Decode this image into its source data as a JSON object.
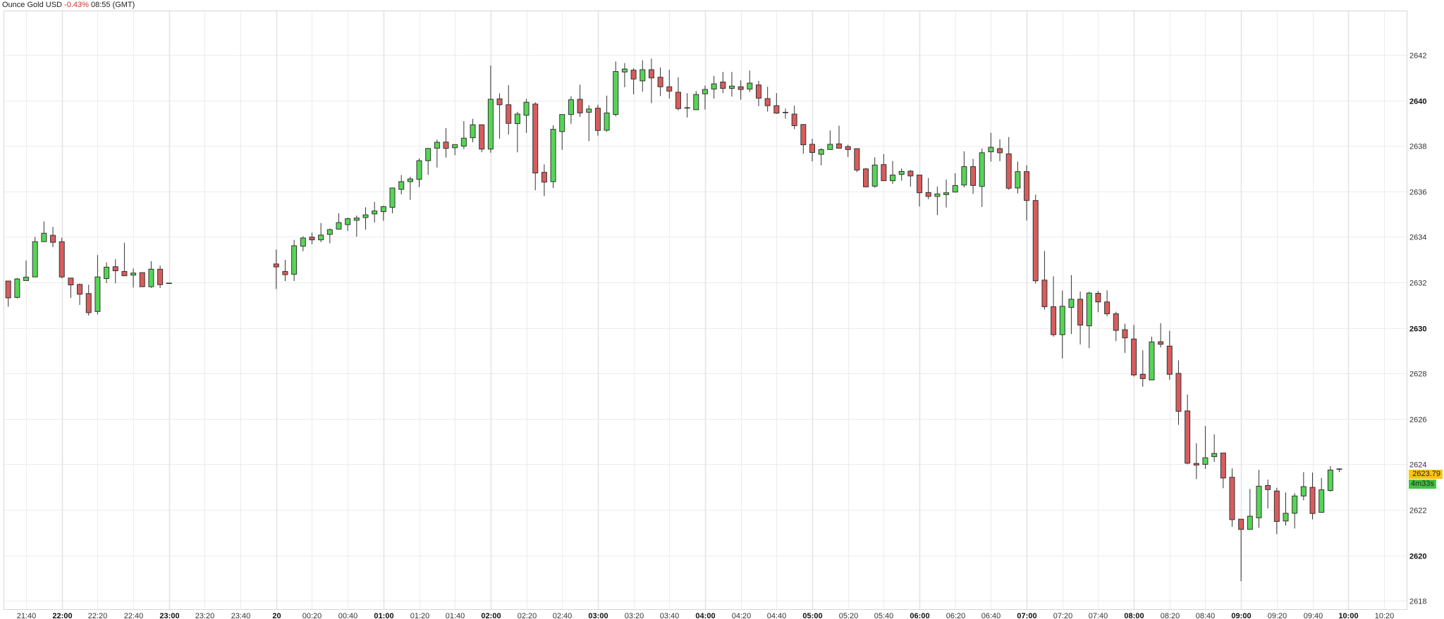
{
  "header": {
    "instrument": "Ounce Gold USD",
    "change": "-0.43%",
    "time": "08:55 (GMT)"
  },
  "colors": {
    "up": "#55d655",
    "down": "#d95c5c",
    "border": "#333333",
    "change_negative": "#d0312d",
    "price_badge": "#f5c518",
    "timer_badge": "#43c443"
  },
  "price_badge": {
    "value": "2623.79"
  },
  "timer_badge": {
    "value": "4m33s"
  },
  "chart_data": {
    "type": "candlestick",
    "interval": "5m",
    "ylim": [
      2617.6,
      2644
    ],
    "grid": true,
    "y_ticks": [
      {
        "v": 2618,
        "label": "2618",
        "bold": false
      },
      {
        "v": 2620,
        "label": "2620",
        "bold": true
      },
      {
        "v": 2622,
        "label": "2622",
        "bold": false
      },
      {
        "v": 2624,
        "label": "2624",
        "bold": false
      },
      {
        "v": 2626,
        "label": "2626",
        "bold": false
      },
      {
        "v": 2628,
        "label": "2628",
        "bold": false
      },
      {
        "v": 2630,
        "label": "2630",
        "bold": true
      },
      {
        "v": 2632,
        "label": "2632",
        "bold": false
      },
      {
        "v": 2634,
        "label": "2634",
        "bold": false
      },
      {
        "v": 2636,
        "label": "2636",
        "bold": false
      },
      {
        "v": 2638,
        "label": "2638",
        "bold": false
      },
      {
        "v": 2640,
        "label": "2640",
        "bold": true
      },
      {
        "v": 2642,
        "label": "2642",
        "bold": false
      }
    ],
    "x_ticks": [
      {
        "t": "21:40",
        "label": "21:40",
        "bold": false
      },
      {
        "t": "22:00",
        "label": "22:00",
        "bold": true
      },
      {
        "t": "22:20",
        "label": "22:20",
        "bold": false
      },
      {
        "t": "22:40",
        "label": "22:40",
        "bold": false
      },
      {
        "t": "23:00",
        "label": "23:00",
        "bold": true
      },
      {
        "t": "23:20",
        "label": "23:20",
        "bold": false
      },
      {
        "t": "23:40",
        "label": "23:40",
        "bold": false
      },
      {
        "t": "00:00",
        "label": "20",
        "bold": true
      },
      {
        "t": "00:20",
        "label": "00:20",
        "bold": false
      },
      {
        "t": "00:40",
        "label": "00:40",
        "bold": false
      },
      {
        "t": "01:00",
        "label": "01:00",
        "bold": true
      },
      {
        "t": "01:20",
        "label": "01:20",
        "bold": false
      },
      {
        "t": "01:40",
        "label": "01:40",
        "bold": false
      },
      {
        "t": "02:00",
        "label": "02:00",
        "bold": true
      },
      {
        "t": "02:20",
        "label": "02:20",
        "bold": false
      },
      {
        "t": "02:40",
        "label": "02:40",
        "bold": false
      },
      {
        "t": "03:00",
        "label": "03:00",
        "bold": true
      },
      {
        "t": "03:20",
        "label": "03:20",
        "bold": false
      },
      {
        "t": "03:40",
        "label": "03:40",
        "bold": false
      },
      {
        "t": "04:00",
        "label": "04:00",
        "bold": true
      },
      {
        "t": "04:20",
        "label": "04:20",
        "bold": false
      },
      {
        "t": "04:40",
        "label": "04:40",
        "bold": false
      },
      {
        "t": "05:00",
        "label": "05:00",
        "bold": true
      },
      {
        "t": "05:20",
        "label": "05:20",
        "bold": false
      },
      {
        "t": "05:40",
        "label": "05:40",
        "bold": false
      },
      {
        "t": "06:00",
        "label": "06:00",
        "bold": true
      },
      {
        "t": "06:20",
        "label": "06:20",
        "bold": false
      },
      {
        "t": "06:40",
        "label": "06:40",
        "bold": false
      },
      {
        "t": "07:00",
        "label": "07:00",
        "bold": true
      },
      {
        "t": "07:20",
        "label": "07:20",
        "bold": false
      },
      {
        "t": "07:40",
        "label": "07:40",
        "bold": false
      },
      {
        "t": "08:00",
        "label": "08:00",
        "bold": true
      },
      {
        "t": "08:20",
        "label": "08:20",
        "bold": false
      },
      {
        "t": "08:40",
        "label": "08:40",
        "bold": false
      },
      {
        "t": "09:00",
        "label": "09:00",
        "bold": true
      },
      {
        "t": "09:20",
        "label": "09:20",
        "bold": false
      },
      {
        "t": "09:40",
        "label": "09:40",
        "bold": false
      },
      {
        "t": "10:00",
        "label": "10:00",
        "bold": true
      },
      {
        "t": "10:20",
        "label": "10:20",
        "bold": false
      }
    ],
    "candles_fields": [
      "time",
      "open",
      "high",
      "low",
      "close"
    ],
    "candles": [
      [
        "21:30",
        2632.06,
        2632.06,
        2630.93,
        2631.32
      ],
      [
        "21:35",
        2631.34,
        2632.2,
        2631.29,
        2632.15
      ],
      [
        "21:40",
        2632.08,
        2632.96,
        2632.08,
        2632.23
      ],
      [
        "21:45",
        2632.24,
        2634.0,
        2632.24,
        2633.79
      ],
      [
        "21:50",
        2633.79,
        2634.68,
        2633.79,
        2634.16
      ],
      [
        "21:55",
        2634.07,
        2634.44,
        2633.55,
        2633.76
      ],
      [
        "22:00",
        2633.79,
        2633.97,
        2632.18,
        2632.24
      ],
      [
        "22:05",
        2632.19,
        2632.19,
        2631.32,
        2631.89
      ],
      [
        "22:10",
        2631.91,
        2631.95,
        2631.01,
        2631.48
      ],
      [
        "22:15",
        2631.51,
        2631.9,
        2630.54,
        2630.67
      ],
      [
        "22:20",
        2630.72,
        2633.2,
        2630.59,
        2632.24
      ],
      [
        "22:25",
        2632.17,
        2632.88,
        2631.97,
        2632.67
      ],
      [
        "22:30",
        2632.69,
        2633.02,
        2631.96,
        2632.51
      ],
      [
        "22:35",
        2632.48,
        2633.74,
        2632.29,
        2632.29
      ],
      [
        "22:40",
        2632.32,
        2632.61,
        2631.78,
        2632.41
      ],
      [
        "22:45",
        2632.43,
        2632.43,
        2631.81,
        2631.81
      ],
      [
        "22:50",
        2631.81,
        2632.93,
        2631.76,
        2632.58
      ],
      [
        "22:55",
        2632.58,
        2632.74,
        2631.75,
        2631.9
      ],
      [
        "23:00",
        2631.96,
        2631.97,
        2631.95,
        2631.96
      ],
      [
        "00:00",
        2632.81,
        2633.44,
        2631.71,
        2632.68
      ],
      [
        "00:05",
        2632.48,
        2632.99,
        2632.06,
        2632.34
      ],
      [
        "00:10",
        2632.36,
        2633.87,
        2632.06,
        2633.61
      ],
      [
        "00:15",
        2633.59,
        2634.03,
        2633.37,
        2633.95
      ],
      [
        "00:20",
        2633.99,
        2634.19,
        2633.68,
        2633.87
      ],
      [
        "00:25",
        2633.87,
        2634.61,
        2633.77,
        2634.08
      ],
      [
        "00:30",
        2634.11,
        2634.37,
        2633.72,
        2634.32
      ],
      [
        "00:35",
        2634.34,
        2635.04,
        2634.32,
        2634.63
      ],
      [
        "00:40",
        2634.54,
        2634.85,
        2634.26,
        2634.8
      ],
      [
        "00:45",
        2634.73,
        2634.94,
        2634.01,
        2634.83
      ],
      [
        "00:50",
        2634.85,
        2635.3,
        2634.32,
        2634.97
      ],
      [
        "00:55",
        2635.01,
        2635.54,
        2634.63,
        2635.14
      ],
      [
        "01:00",
        2635.11,
        2635.37,
        2634.71,
        2635.33
      ],
      [
        "01:05",
        2635.3,
        2636.15,
        2635.04,
        2636.15
      ],
      [
        "01:10",
        2636.09,
        2636.72,
        2635.87,
        2636.43
      ],
      [
        "01:15",
        2636.43,
        2636.64,
        2635.63,
        2636.55
      ],
      [
        "01:20",
        2636.53,
        2637.45,
        2636.19,
        2637.35
      ],
      [
        "01:25",
        2637.35,
        2637.89,
        2636.73,
        2637.89
      ],
      [
        "01:30",
        2637.9,
        2638.28,
        2637.05,
        2638.16
      ],
      [
        "01:35",
        2638.17,
        2638.78,
        2637.49,
        2637.89
      ],
      [
        "01:40",
        2637.92,
        2638.06,
        2637.59,
        2638.06
      ],
      [
        "01:45",
        2637.99,
        2639.09,
        2637.86,
        2638.34
      ],
      [
        "01:50",
        2638.36,
        2639.19,
        2638.16,
        2638.93
      ],
      [
        "01:55",
        2638.93,
        2638.93,
        2637.72,
        2637.86
      ],
      [
        "02:00",
        2637.86,
        2641.53,
        2637.7,
        2640.05
      ],
      [
        "02:05",
        2640.07,
        2640.31,
        2638.32,
        2639.81
      ],
      [
        "02:10",
        2639.81,
        2640.67,
        2638.5,
        2638.99
      ],
      [
        "02:15",
        2638.98,
        2639.5,
        2637.72,
        2639.4
      ],
      [
        "02:20",
        2639.35,
        2640.07,
        2638.57,
        2639.92
      ],
      [
        "02:25",
        2639.84,
        2639.92,
        2636.05,
        2636.81
      ],
      [
        "02:30",
        2636.84,
        2637.19,
        2635.79,
        2636.41
      ],
      [
        "02:35",
        2636.43,
        2638.91,
        2636.15,
        2638.73
      ],
      [
        "02:40",
        2638.63,
        2639.38,
        2637.83,
        2639.38
      ],
      [
        "02:45",
        2639.38,
        2640.19,
        2638.97,
        2640.03
      ],
      [
        "02:50",
        2640.05,
        2640.69,
        2639.28,
        2639.45
      ],
      [
        "02:55",
        2639.48,
        2639.79,
        2638.21,
        2639.62
      ],
      [
        "03:00",
        2639.66,
        2639.81,
        2638.45,
        2638.68
      ],
      [
        "03:05",
        2638.69,
        2640.21,
        2638.62,
        2639.45
      ],
      [
        "03:10",
        2639.38,
        2641.71,
        2639.3,
        2641.27
      ],
      [
        "03:15",
        2641.25,
        2641.64,
        2640.58,
        2641.38
      ],
      [
        "03:20",
        2641.33,
        2641.41,
        2640.27,
        2640.94
      ],
      [
        "03:25",
        2640.86,
        2641.76,
        2640.39,
        2641.35
      ],
      [
        "03:30",
        2641.35,
        2641.84,
        2639.88,
        2640.99
      ],
      [
        "03:35",
        2641.02,
        2641.45,
        2640.19,
        2640.6
      ],
      [
        "03:40",
        2640.6,
        2641.35,
        2640.08,
        2640.41
      ],
      [
        "03:45",
        2640.36,
        2641.02,
        2639.56,
        2639.64
      ],
      [
        "03:50",
        2639.66,
        2640.32,
        2639.25,
        2639.67
      ],
      [
        "03:55",
        2639.59,
        2640.41,
        2639.59,
        2640.26
      ],
      [
        "04:00",
        2640.29,
        2640.65,
        2639.6,
        2640.48
      ],
      [
        "04:05",
        2640.5,
        2641.07,
        2640.08,
        2640.73
      ],
      [
        "04:10",
        2640.81,
        2641.25,
        2640.32,
        2640.53
      ],
      [
        "04:15",
        2640.53,
        2641.25,
        2640.17,
        2640.63
      ],
      [
        "04:20",
        2640.6,
        2640.88,
        2640.03,
        2640.48
      ],
      [
        "04:25",
        2640.5,
        2641.31,
        2640.37,
        2640.76
      ],
      [
        "04:30",
        2640.68,
        2640.86,
        2639.75,
        2640.1
      ],
      [
        "04:35",
        2640.08,
        2640.6,
        2639.51,
        2639.77
      ],
      [
        "04:40",
        2639.77,
        2640.32,
        2639.41,
        2639.44
      ],
      [
        "04:45",
        2639.46,
        2639.64,
        2639.2,
        2639.47
      ],
      [
        "04:50",
        2639.4,
        2639.77,
        2638.74,
        2638.89
      ],
      [
        "04:55",
        2638.94,
        2638.96,
        2637.66,
        2638.05
      ],
      [
        "05:00",
        2638.07,
        2638.31,
        2637.32,
        2637.71
      ],
      [
        "05:05",
        2637.63,
        2637.9,
        2637.15,
        2637.84
      ],
      [
        "05:10",
        2637.84,
        2638.68,
        2637.84,
        2638.07
      ],
      [
        "05:15",
        2638.09,
        2638.89,
        2637.9,
        2637.9
      ],
      [
        "05:20",
        2637.97,
        2638.05,
        2637.51,
        2637.84
      ],
      [
        "05:25",
        2637.88,
        2637.88,
        2636.85,
        2636.94
      ],
      [
        "05:30",
        2636.99,
        2637.03,
        2636.18,
        2636.2
      ],
      [
        "05:35",
        2636.23,
        2637.5,
        2636.16,
        2637.16
      ],
      [
        "05:40",
        2637.18,
        2637.64,
        2636.47,
        2636.47
      ],
      [
        "05:45",
        2636.47,
        2637.34,
        2636.33,
        2636.72
      ],
      [
        "05:50",
        2636.75,
        2637.01,
        2636.47,
        2636.88
      ],
      [
        "05:55",
        2636.89,
        2636.94,
        2636.21,
        2636.68
      ],
      [
        "06:00",
        2636.72,
        2636.72,
        2635.34,
        2635.94
      ],
      [
        "06:05",
        2635.95,
        2636.59,
        2635.66,
        2635.78
      ],
      [
        "06:10",
        2635.78,
        2636.21,
        2634.96,
        2635.89
      ],
      [
        "06:15",
        2635.86,
        2636.52,
        2635.29,
        2635.94
      ],
      [
        "06:20",
        2635.97,
        2636.8,
        2635.97,
        2636.26
      ],
      [
        "06:25",
        2636.28,
        2637.76,
        2636.18,
        2637.09
      ],
      [
        "06:30",
        2637.09,
        2637.43,
        2635.89,
        2636.26
      ],
      [
        "06:35",
        2636.22,
        2637.88,
        2635.32,
        2637.7
      ],
      [
        "06:40",
        2637.74,
        2638.58,
        2637.31,
        2637.94
      ],
      [
        "06:45",
        2637.88,
        2638.29,
        2637.33,
        2637.7
      ],
      [
        "06:50",
        2637.65,
        2638.39,
        2636.07,
        2636.14
      ],
      [
        "06:55",
        2636.15,
        2637.31,
        2635.91,
        2636.87
      ],
      [
        "07:00",
        2636.87,
        2637.15,
        2634.72,
        2635.6
      ],
      [
        "07:05",
        2635.6,
        2635.86,
        2631.95,
        2632.07
      ],
      [
        "07:10",
        2632.1,
        2633.38,
        2630.8,
        2630.93
      ],
      [
        "07:15",
        2630.93,
        2632.27,
        2629.61,
        2629.7
      ],
      [
        "07:20",
        2629.7,
        2631.64,
        2628.66,
        2630.95
      ],
      [
        "07:25",
        2630.9,
        2632.32,
        2629.73,
        2631.26
      ],
      [
        "07:30",
        2631.26,
        2631.6,
        2629.27,
        2630.12
      ],
      [
        "07:35",
        2630.09,
        2631.59,
        2629.11,
        2631.53
      ],
      [
        "07:40",
        2631.52,
        2631.62,
        2630.69,
        2631.14
      ],
      [
        "07:45",
        2631.14,
        2631.65,
        2630.51,
        2630.62
      ],
      [
        "07:50",
        2630.62,
        2630.71,
        2629.42,
        2629.89
      ],
      [
        "07:55",
        2629.92,
        2630.18,
        2628.9,
        2629.56
      ],
      [
        "08:00",
        2629.51,
        2630.13,
        2627.86,
        2627.93
      ],
      [
        "08:05",
        2627.96,
        2629.02,
        2627.41,
        2627.77
      ],
      [
        "08:10",
        2627.71,
        2629.61,
        2627.71,
        2629.38
      ],
      [
        "08:15",
        2629.39,
        2630.21,
        2629.14,
        2629.28
      ],
      [
        "08:20",
        2629.2,
        2629.87,
        2627.72,
        2627.96
      ],
      [
        "08:25",
        2628.0,
        2628.57,
        2625.74,
        2626.33
      ],
      [
        "08:30",
        2626.35,
        2627.07,
        2624.0,
        2624.05
      ],
      [
        "08:35",
        2624.04,
        2624.93,
        2623.35,
        2623.97
      ],
      [
        "08:40",
        2624.0,
        2625.69,
        2623.8,
        2624.29
      ],
      [
        "08:45",
        2624.34,
        2625.32,
        2624.11,
        2624.48
      ],
      [
        "08:50",
        2624.5,
        2624.5,
        2622.95,
        2623.4
      ],
      [
        "08:55",
        2623.43,
        2623.82,
        2621.26,
        2621.57
      ],
      [
        "09:00",
        2621.59,
        2621.59,
        2618.86,
        2621.14
      ],
      [
        "09:05",
        2621.14,
        2622.92,
        2621.13,
        2621.72
      ],
      [
        "09:10",
        2621.65,
        2623.76,
        2621.21,
        2623.04
      ],
      [
        "09:15",
        2623.07,
        2623.33,
        2622.06,
        2622.89
      ],
      [
        "09:20",
        2622.83,
        2622.97,
        2620.93,
        2621.49
      ],
      [
        "09:25",
        2621.51,
        2622.76,
        2621.31,
        2621.85
      ],
      [
        "09:30",
        2621.85,
        2622.73,
        2621.18,
        2622.61
      ],
      [
        "09:35",
        2622.61,
        2623.66,
        2622.42,
        2623.02
      ],
      [
        "09:40",
        2622.99,
        2623.64,
        2621.58,
        2621.84
      ],
      [
        "09:45",
        2621.89,
        2623.4,
        2621.89,
        2622.88
      ],
      [
        "09:50",
        2622.85,
        2623.92,
        2622.8,
        2623.75
      ],
      [
        "09:55",
        2623.79,
        2623.82,
        2623.66,
        2623.79
      ]
    ]
  }
}
